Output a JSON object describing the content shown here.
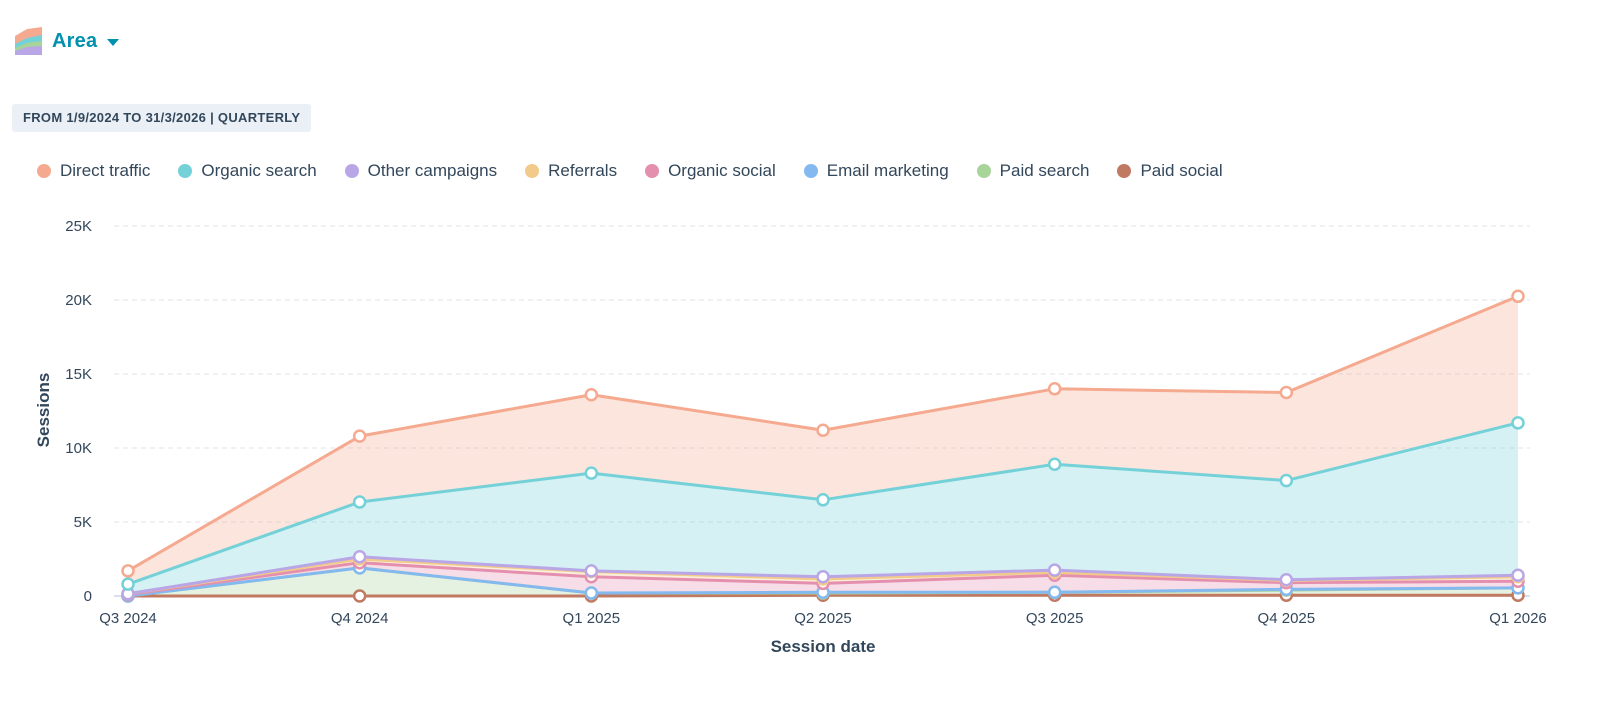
{
  "header": {
    "chart_type_label": "Area",
    "chart_type_icon": "area-chart-icon",
    "date_range_label": "FROM 1/9/2024 TO 31/3/2026 | QUARTERLY"
  },
  "chart_data": {
    "type": "area",
    "stacked": true,
    "categories": [
      "Q3 2024",
      "Q4 2024",
      "Q1 2025",
      "Q2 2025",
      "Q3 2025",
      "Q4 2025",
      "Q1 2026"
    ],
    "xlabel": "Session date",
    "ylabel": "Sessions",
    "ylim": [
      0,
      25000
    ],
    "yticks": [
      0,
      5000,
      10000,
      15000,
      20000,
      25000
    ],
    "ytick_labels": [
      "0",
      "5K",
      "10K",
      "15K",
      "20K",
      "25K"
    ],
    "grid": true,
    "legend_position": "top-left",
    "series": [
      {
        "name": "Paid social",
        "color": "#c07a62",
        "values": [
          0,
          0,
          0,
          50,
          50,
          50,
          50
        ]
      },
      {
        "name": "Paid search",
        "color": "#a8d49a",
        "values": [
          0,
          1900,
          200,
          150,
          200,
          350,
          500
        ]
      },
      {
        "name": "Email marketing",
        "color": "#84b9f0",
        "values": [
          0,
          0,
          0,
          50,
          0,
          50,
          0
        ]
      },
      {
        "name": "Organic social",
        "color": "#e58fae",
        "values": [
          100,
          350,
          1100,
          600,
          1150,
          450,
          450
        ]
      },
      {
        "name": "Referrals",
        "color": "#f2ca8a",
        "values": [
          50,
          250,
          350,
          300,
          200,
          150,
          300
        ]
      },
      {
        "name": "Other campaigns",
        "color": "#b9a6e6",
        "values": [
          0,
          150,
          50,
          150,
          150,
          50,
          100
        ]
      },
      {
        "name": "Organic search",
        "color": "#74d1d8",
        "values": [
          650,
          3700,
          6600,
          5200,
          7150,
          6700,
          10300
        ]
      },
      {
        "name": "Direct traffic",
        "color": "#f5a98f",
        "values": [
          900,
          4450,
          5300,
          4700,
          5100,
          5950,
          8550
        ]
      }
    ],
    "legend_order": [
      "Direct traffic",
      "Organic search",
      "Other campaigns",
      "Referrals",
      "Organic social",
      "Email marketing",
      "Paid search",
      "Paid social"
    ]
  }
}
